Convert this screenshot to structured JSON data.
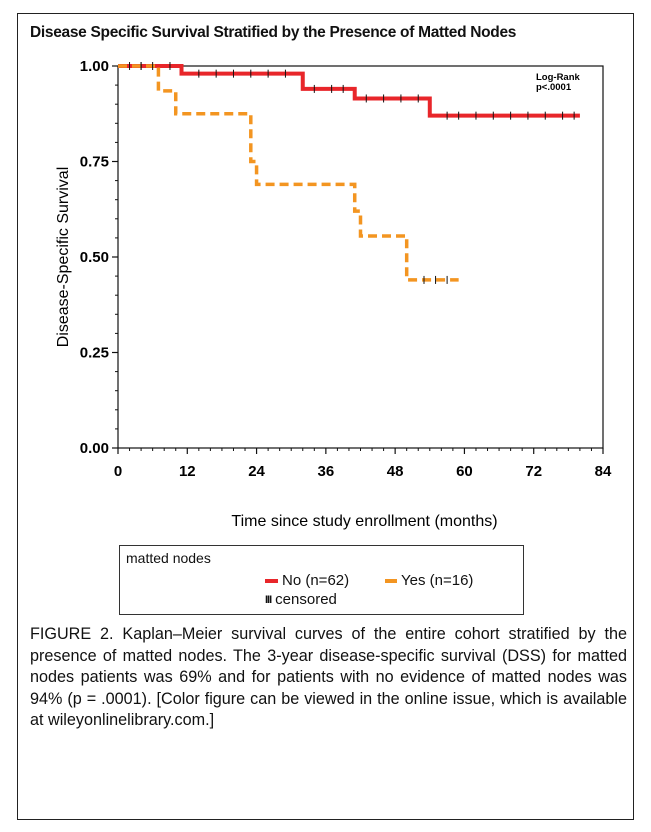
{
  "figure": {
    "title": "Disease Specific Survival Stratified by the Presence of Matted Nodes",
    "caption_label": "FIGURE 2.",
    "caption_text": "Kaplan–Meier survival curves of the entire cohort stratified by the presence of matted nodes. The 3-year disease-specific survival (DSS) for matted nodes patients was 69% and for patients with no evidence of matted nodes was 94% (p = .0001). [Color figure can be viewed in the online issue, which is available at wileyonlinelibrary.com.]"
  },
  "chart_data": {
    "type": "line",
    "step": true,
    "title": "Disease Specific Survival Stratified by the Presence of Matted Nodes",
    "xlabel": "Time since study enrollment (months)",
    "ylabel": "Disease-Specific Survival",
    "xlim": [
      0,
      84
    ],
    "ylim": [
      0,
      1
    ],
    "x_ticks": [
      0,
      12,
      24,
      36,
      48,
      60,
      72,
      84
    ],
    "y_ticks": [
      0.0,
      0.25,
      0.5,
      0.75,
      1.0
    ],
    "x_tick_labels": [
      "0",
      "12",
      "24",
      "36",
      "48",
      "60",
      "72",
      "84"
    ],
    "y_tick_labels": [
      "0.00",
      "0.25",
      "0.50",
      "0.75",
      "1.00"
    ],
    "annotation": [
      "Log-Rank",
      "p<.0001"
    ],
    "legend": {
      "title": "matted nodes",
      "placement": "bottom",
      "censored_label": "censored"
    },
    "series": [
      {
        "name": "No (n=62)",
        "color": "#e8262a",
        "dash": "solid",
        "steps": [
          [
            0,
            1.0
          ],
          [
            11,
            0.98
          ],
          [
            32,
            0.94
          ],
          [
            41,
            0.915
          ],
          [
            54,
            0.87
          ],
          [
            80,
            0.87
          ]
        ],
        "censored": [
          4,
          6,
          9,
          14,
          17,
          20,
          23,
          26,
          29,
          34,
          37,
          39,
          43,
          46,
          49,
          52,
          57,
          59,
          62,
          65,
          68,
          71,
          74,
          77,
          79
        ]
      },
      {
        "name": "Yes (n=16)",
        "color": "#f39521",
        "dash": "dashed",
        "steps": [
          [
            0,
            1.0
          ],
          [
            7,
            0.935
          ],
          [
            10,
            0.875
          ],
          [
            23,
            0.75
          ],
          [
            24,
            0.69
          ],
          [
            41,
            0.62
          ],
          [
            42,
            0.555
          ],
          [
            50,
            0.44
          ],
          [
            59,
            0.44
          ]
        ],
        "censored": [
          2,
          4,
          53,
          55,
          57
        ]
      }
    ],
    "grid": false,
    "colors": {
      "axis": "#111111",
      "no_series": "#e8262a",
      "yes_series": "#f39521"
    }
  }
}
